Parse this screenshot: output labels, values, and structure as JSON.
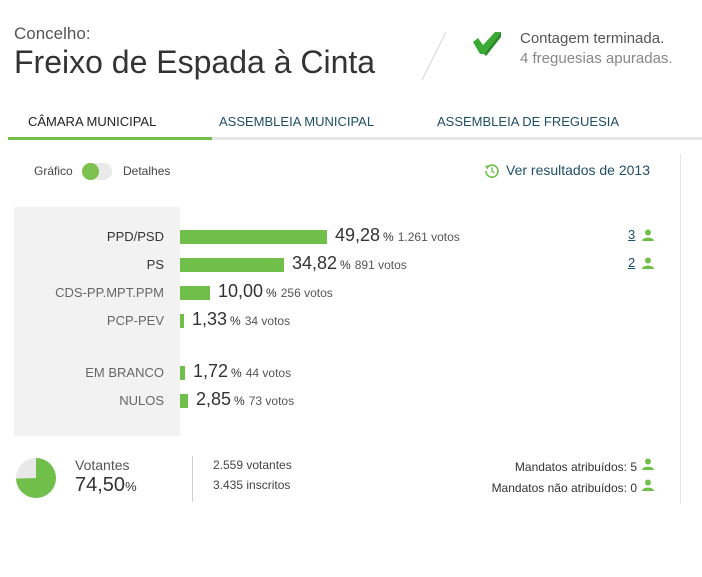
{
  "header": {
    "label": "Concelho:",
    "name": "Freixo de Espada à Cinta",
    "status": "Contagem terminada.",
    "status_sub": "4 freguesias apuradas."
  },
  "tabs": [
    {
      "label": "CÂMARA MUNICIPAL",
      "active": true
    },
    {
      "label": "ASSEMBLEIA MUNICIPAL",
      "active": false
    },
    {
      "label": "ASSEMBLEIA DE FREGUESIA",
      "active": false
    }
  ],
  "toggle": {
    "left_label": "Gráfico",
    "right_label": "Detalhes"
  },
  "previous_results_link": "Ver resultados de 2013",
  "colors": {
    "accent": "#6fbf4a",
    "link": "#1f4f66"
  },
  "percent_symbol": "%",
  "results": [
    {
      "name": "PPD/PSD",
      "percent": "49,28",
      "votes": "1.261 votos",
      "seats": "3"
    },
    {
      "name": "PS",
      "percent": "34,82",
      "votes": "891 votos",
      "seats": "2"
    },
    {
      "name": "CDS-PP.MPT.PPM",
      "percent": "10,00",
      "votes": "256 votos"
    },
    {
      "name": "PCP-PEV",
      "percent": "1,33",
      "votes": "34 votos"
    },
    {
      "name": "EM BRANCO",
      "percent": "1,72",
      "votes": "44 votos"
    },
    {
      "name": "NULOS",
      "percent": "2,85",
      "votes": "73 votos"
    }
  ],
  "turnout": {
    "label": "Votantes",
    "percent": "74,50",
    "voters": "2.559 votantes",
    "registered": "3.435 inscritos"
  },
  "mandates": {
    "assigned": "Mandatos atribuídos: 5",
    "unassigned": "Mandatos não atribuídos: 0"
  }
}
